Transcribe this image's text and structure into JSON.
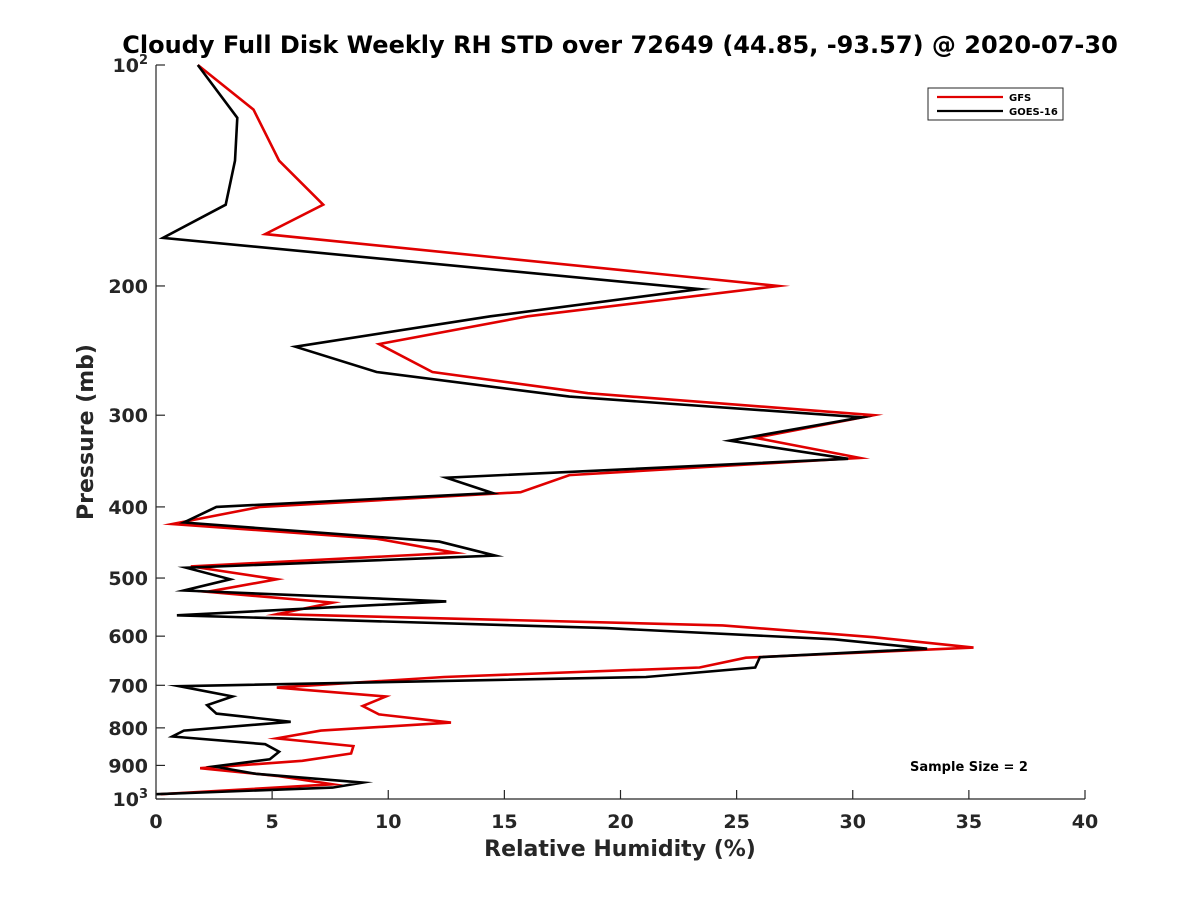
{
  "chart_data": {
    "type": "line",
    "title": "Cloudy Full Disk Weekly RH STD over 72649 (44.85, -93.57) @ 2020-07-30",
    "xlabel": "Relative Humidity (%)",
    "ylabel": "Pressure (mb)",
    "xlim": [
      0,
      40
    ],
    "ylim": [
      100,
      1000
    ],
    "y_scale": "log",
    "y_reversed": true,
    "grid": false,
    "legend_position": "top-right",
    "x_ticks": [
      "0",
      "5",
      "10",
      "15",
      "20",
      "25",
      "30",
      "35",
      "40"
    ],
    "y_ticks": [
      {
        "value": 100,
        "label": "10",
        "sup": "2"
      },
      {
        "value": 200,
        "label": "200",
        "sup": ""
      },
      {
        "value": 300,
        "label": "300",
        "sup": ""
      },
      {
        "value": 400,
        "label": "400",
        "sup": ""
      },
      {
        "value": 500,
        "label": "500",
        "sup": ""
      },
      {
        "value": 600,
        "label": "600",
        "sup": ""
      },
      {
        "value": 700,
        "label": "700",
        "sup": ""
      },
      {
        "value": 800,
        "label": "800",
        "sup": ""
      },
      {
        "value": 900,
        "label": "900",
        "sup": ""
      },
      {
        "value": 1000,
        "label": "10",
        "sup": "3"
      }
    ],
    "annotation": "Sample Size = 2",
    "series": [
      {
        "name": "GFS",
        "color": "#e00000",
        "points": [
          [
            1.8,
            100
          ],
          [
            4.2,
            115
          ],
          [
            5.3,
            135
          ],
          [
            7.2,
            155
          ],
          [
            4.7,
            170
          ],
          [
            26.8,
            200
          ],
          [
            16.0,
            220
          ],
          [
            9.6,
            240
          ],
          [
            11.9,
            262
          ],
          [
            18.6,
            280
          ],
          [
            30.9,
            300
          ],
          [
            25.8,
            322
          ],
          [
            30.3,
            343
          ],
          [
            17.8,
            362
          ],
          [
            15.7,
            382
          ],
          [
            4.5,
            400
          ],
          [
            0.7,
            422
          ],
          [
            9.5,
            442
          ],
          [
            12.9,
            462
          ],
          [
            1.5,
            482
          ],
          [
            5.2,
            502
          ],
          [
            2.2,
            522
          ],
          [
            7.6,
            540
          ],
          [
            5.2,
            560
          ],
          [
            24.4,
            580
          ],
          [
            30.9,
            602
          ],
          [
            35.2,
            622
          ],
          [
            25.4,
            642
          ],
          [
            23.4,
            662
          ],
          [
            12.4,
            682
          ],
          [
            5.2,
            705
          ],
          [
            9.9,
            725
          ],
          [
            8.9,
            747
          ],
          [
            9.6,
            767
          ],
          [
            12.7,
            787
          ],
          [
            7.1,
            807
          ],
          [
            5.2,
            827
          ],
          [
            8.5,
            847
          ],
          [
            8.4,
            867
          ],
          [
            6.3,
            887
          ],
          [
            1.9,
            908
          ],
          [
            5.2,
            930
          ],
          [
            7.6,
            955
          ],
          [
            0.2,
            985
          ]
        ]
      },
      {
        "name": "GOES-16",
        "color": "#000000",
        "points": [
          [
            1.8,
            100
          ],
          [
            3.5,
            118
          ],
          [
            3.4,
            135
          ],
          [
            3.0,
            155
          ],
          [
            0.3,
            172
          ],
          [
            23.4,
            202
          ],
          [
            14.4,
            220
          ],
          [
            6.0,
            242
          ],
          [
            9.5,
            262
          ],
          [
            17.8,
            283
          ],
          [
            30.4,
            302
          ],
          [
            24.7,
            325
          ],
          [
            29.8,
            344
          ],
          [
            12.5,
            365
          ],
          [
            14.5,
            383
          ],
          [
            2.6,
            400
          ],
          [
            1.2,
            420
          ],
          [
            12.2,
            446
          ],
          [
            14.6,
            466
          ],
          [
            1.3,
            484
          ],
          [
            3.2,
            502
          ],
          [
            1.2,
            520
          ],
          [
            12.5,
            538
          ],
          [
            0.9,
            562
          ],
          [
            19.4,
            585
          ],
          [
            29.2,
            606
          ],
          [
            33.2,
            624
          ],
          [
            26.0,
            641
          ],
          [
            25.8,
            662
          ],
          [
            21.1,
            682
          ],
          [
            1.0,
            702
          ],
          [
            3.3,
            725
          ],
          [
            2.2,
            745
          ],
          [
            2.6,
            765
          ],
          [
            5.8,
            785
          ],
          [
            1.2,
            807
          ],
          [
            0.7,
            822
          ],
          [
            4.7,
            842
          ],
          [
            5.3,
            862
          ],
          [
            4.9,
            883
          ],
          [
            2.5,
            903
          ],
          [
            4.3,
            924
          ],
          [
            8.9,
            950
          ],
          [
            7.6,
            965
          ],
          [
            0.0,
            985
          ]
        ]
      }
    ]
  }
}
